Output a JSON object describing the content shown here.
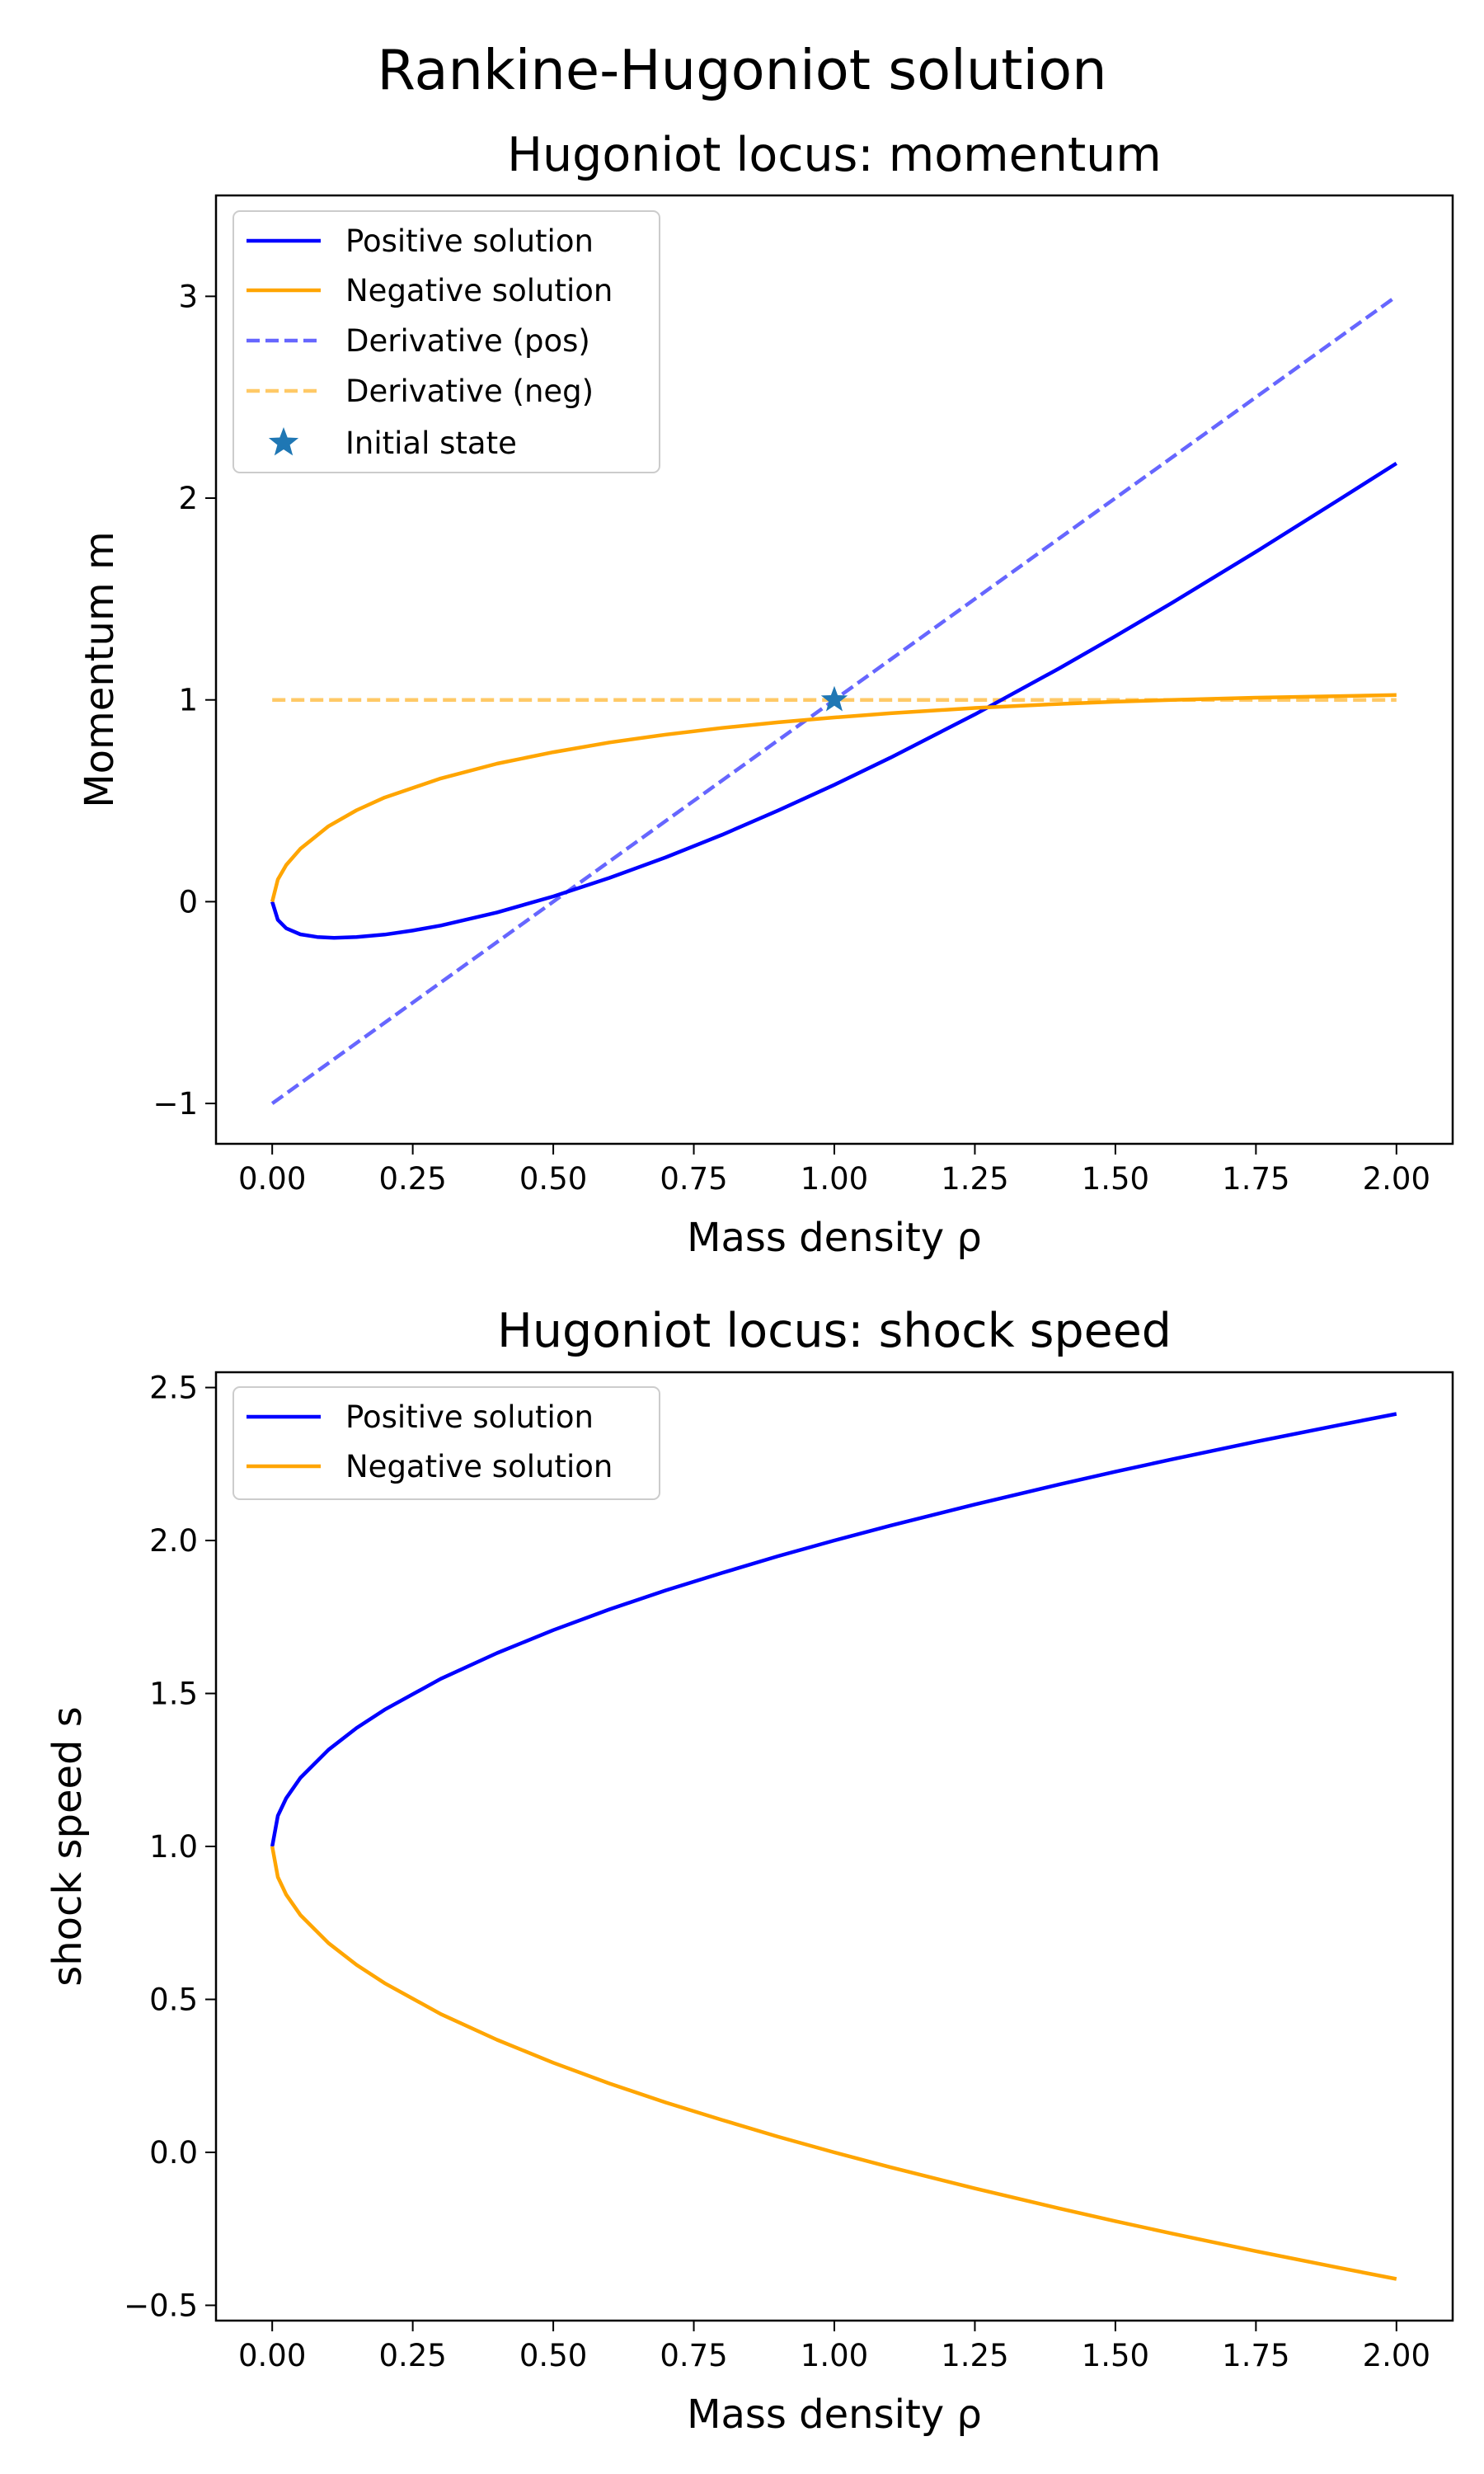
{
  "figure": {
    "suptitle": "Rankine-Hugoniot solution"
  },
  "colors": {
    "positive": "#0000ff",
    "negative": "#ffa500",
    "initial": "#1f77b4"
  },
  "chart_data": [
    {
      "type": "line",
      "title": "Hugoniot locus: momentum",
      "xlabel": "Mass density ρ",
      "ylabel": "Momentum m",
      "xlim": [
        -0.1,
        2.1
      ],
      "ylim": [
        -1.2,
        3.5
      ],
      "xticks": [
        0.0,
        0.25,
        0.5,
        0.75,
        1.0,
        1.25,
        1.5,
        1.75,
        2.0
      ],
      "xtick_labels": [
        "0.00",
        "0.25",
        "0.50",
        "0.75",
        "1.00",
        "1.25",
        "1.50",
        "1.75",
        "2.00"
      ],
      "yticks": [
        -1,
        0,
        1,
        2,
        3
      ],
      "ytick_labels": [
        "−1",
        "0",
        "1",
        "2",
        "3"
      ],
      "grid": false,
      "legend": "upper left",
      "series": [
        {
          "name": "Positive solution",
          "style": "solid",
          "color": "#0000ff",
          "x": [
            0.0,
            0.01,
            0.025,
            0.05,
            0.08,
            0.11,
            0.15,
            0.2,
            0.25,
            0.3,
            0.4,
            0.5,
            0.6,
            0.7,
            0.8,
            0.9,
            1.0,
            1.1,
            1.25,
            1.4,
            1.5,
            1.6,
            1.75,
            1.9,
            2.0
          ],
          "y": [
            0.0,
            -0.09,
            -0.132,
            -0.162,
            -0.175,
            -0.179,
            -0.175,
            -0.163,
            -0.143,
            -0.118,
            -0.053,
            0.026,
            0.118,
            0.22,
            0.331,
            0.452,
            0.579,
            0.714,
            0.928,
            1.156,
            1.316,
            1.48,
            1.734,
            1.996,
            2.172
          ]
        },
        {
          "name": "Negative solution",
          "style": "solid",
          "color": "#ffa500",
          "x": [
            0.0,
            0.01,
            0.025,
            0.05,
            0.1,
            0.15,
            0.2,
            0.3,
            0.4,
            0.5,
            0.6,
            0.7,
            0.8,
            0.9,
            1.0,
            1.1,
            1.25,
            1.4,
            1.5,
            1.6,
            1.75,
            1.9,
            2.0
          ],
          "y": [
            0.0,
            0.11,
            0.182,
            0.262,
            0.374,
            0.453,
            0.516,
            0.611,
            0.684,
            0.741,
            0.789,
            0.828,
            0.861,
            0.889,
            0.913,
            0.934,
            0.96,
            0.98,
            0.991,
            1.0,
            1.011,
            1.019,
            1.024
          ]
        },
        {
          "name": "Derivative (pos)",
          "style": "dashed",
          "color": "#0000ff",
          "opacity": 0.6,
          "x": [
            0.0,
            2.0
          ],
          "y": [
            -1.0,
            3.0
          ]
        },
        {
          "name": "Derivative (neg)",
          "style": "dashed",
          "color": "#ffa500",
          "opacity": 0.6,
          "x": [
            0.0,
            2.0
          ],
          "y": [
            1.0,
            1.0
          ]
        },
        {
          "name": "Initial state",
          "style": "marker",
          "marker": "star",
          "color": "#1f77b4",
          "x": [
            1.0
          ],
          "y": [
            1.0
          ]
        }
      ]
    },
    {
      "type": "line",
      "title": "Hugoniot locus: shock speed",
      "xlabel": "Mass density ρ",
      "ylabel": "shock speed s",
      "xlim": [
        -0.1,
        2.1
      ],
      "ylim": [
        -0.55,
        2.55
      ],
      "xticks": [
        0.0,
        0.25,
        0.5,
        0.75,
        1.0,
        1.25,
        1.5,
        1.75,
        2.0
      ],
      "xtick_labels": [
        "0.00",
        "0.25",
        "0.50",
        "0.75",
        "1.00",
        "1.25",
        "1.50",
        "1.75",
        "2.00"
      ],
      "yticks": [
        -0.5,
        0.0,
        0.5,
        1.0,
        1.5,
        2.0,
        2.5
      ],
      "ytick_labels": [
        "−0.5",
        "0.0",
        "0.5",
        "1.0",
        "1.5",
        "2.0",
        "2.5"
      ],
      "grid": false,
      "legend": "upper left",
      "series": [
        {
          "name": "Positive solution",
          "style": "solid",
          "color": "#0000ff",
          "x": [
            0.0,
            0.01,
            0.025,
            0.05,
            0.1,
            0.15,
            0.2,
            0.3,
            0.4,
            0.5,
            0.6,
            0.7,
            0.8,
            0.9,
            1.0,
            1.1,
            1.25,
            1.4,
            1.5,
            1.6,
            1.75,
            1.9,
            2.0
          ],
          "y": [
            1.0,
            1.1,
            1.158,
            1.224,
            1.316,
            1.387,
            1.447,
            1.548,
            1.632,
            1.707,
            1.775,
            1.837,
            1.894,
            1.949,
            2.0,
            2.049,
            2.118,
            2.183,
            2.225,
            2.265,
            2.323,
            2.378,
            2.414
          ]
        },
        {
          "name": "Negative solution",
          "style": "solid",
          "color": "#ffa500",
          "x": [
            0.0,
            0.01,
            0.025,
            0.05,
            0.1,
            0.15,
            0.2,
            0.3,
            0.4,
            0.5,
            0.6,
            0.7,
            0.8,
            0.9,
            1.0,
            1.1,
            1.25,
            1.4,
            1.5,
            1.6,
            1.75,
            1.9,
            2.0
          ],
          "y": [
            1.0,
            0.9,
            0.842,
            0.776,
            0.684,
            0.613,
            0.553,
            0.452,
            0.368,
            0.293,
            0.225,
            0.163,
            0.106,
            0.051,
            0.0,
            -0.049,
            -0.118,
            -0.183,
            -0.225,
            -0.265,
            -0.323,
            -0.378,
            -0.414
          ]
        }
      ]
    }
  ]
}
